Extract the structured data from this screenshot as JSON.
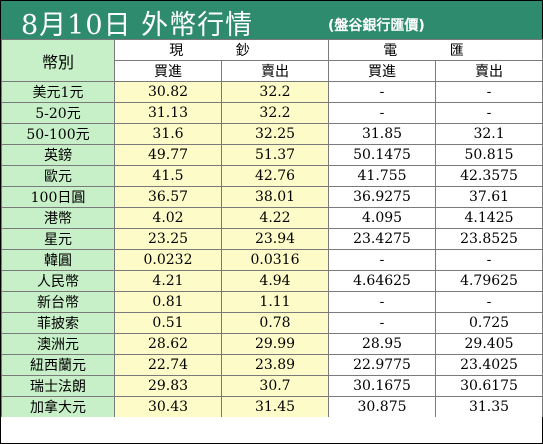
{
  "title": "8月10日  外幣行情",
  "subtitle": "(盤谷銀行匯價)",
  "header": {
    "currency_label": "幣別",
    "cash_label": "現 鈔",
    "wire_label": "電 匯",
    "buy_label": "買進",
    "sell_label": "賣出"
  },
  "rows": [
    {
      "name": "美元1元",
      "cash_buy": "30.82",
      "cash_sell": "32.2",
      "wire_buy": "-",
      "wire_sell": "-"
    },
    {
      "name": "5-20元",
      "cash_buy": "31.13",
      "cash_sell": "32.2",
      "wire_buy": "-",
      "wire_sell": "-"
    },
    {
      "name": "50-100元",
      "cash_buy": "31.6",
      "cash_sell": "32.25",
      "wire_buy": "31.85",
      "wire_sell": "32.1"
    },
    {
      "name": "英鎊",
      "cash_buy": "49.77",
      "cash_sell": "51.37",
      "wire_buy": "50.1475",
      "wire_sell": "50.815"
    },
    {
      "name": "歐元",
      "cash_buy": "41.5",
      "cash_sell": "42.76",
      "wire_buy": "41.755",
      "wire_sell": "42.3575"
    },
    {
      "name": "100日圓",
      "cash_buy": "36.57",
      "cash_sell": "38.01",
      "wire_buy": "36.9275",
      "wire_sell": "37.61"
    },
    {
      "name": "港幣",
      "cash_buy": "4.02",
      "cash_sell": "4.22",
      "wire_buy": "4.095",
      "wire_sell": "4.1425"
    },
    {
      "name": "星元",
      "cash_buy": "23.25",
      "cash_sell": "23.94",
      "wire_buy": "23.4275",
      "wire_sell": "23.8525"
    },
    {
      "name": "韓圓",
      "cash_buy": "0.0232",
      "cash_sell": "0.0316",
      "wire_buy": "-",
      "wire_sell": "-"
    },
    {
      "name": "人民幣",
      "cash_buy": "4.21",
      "cash_sell": "4.94",
      "wire_buy": "4.64625",
      "wire_sell": "4.79625"
    },
    {
      "name": "新台幣",
      "cash_buy": "0.81",
      "cash_sell": "1.11",
      "wire_buy": "-",
      "wire_sell": "-"
    },
    {
      "name": "菲披索",
      "cash_buy": "0.51",
      "cash_sell": "0.78",
      "wire_buy": "-",
      "wire_sell": "0.725"
    },
    {
      "name": "澳洲元",
      "cash_buy": "28.62",
      "cash_sell": "29.99",
      "wire_buy": "28.95",
      "wire_sell": "29.405"
    },
    {
      "name": "紐西蘭元",
      "cash_buy": "22.74",
      "cash_sell": "23.89",
      "wire_buy": "22.9775",
      "wire_sell": "23.4025"
    },
    {
      "name": "瑞士法朗",
      "cash_buy": "29.83",
      "cash_sell": "30.7",
      "wire_buy": "30.1675",
      "wire_sell": "30.6175"
    },
    {
      "name": "加拿大元",
      "cash_buy": "30.43",
      "cash_sell": "31.45",
      "wire_buy": "30.875",
      "wire_sell": "31.35"
    }
  ],
  "colors": {
    "title_bg": "#2e8b6e",
    "name_col_bg": "#c8f0c8",
    "cash_bg": "#fdfbc8",
    "wire_bg": "#ffffff"
  }
}
